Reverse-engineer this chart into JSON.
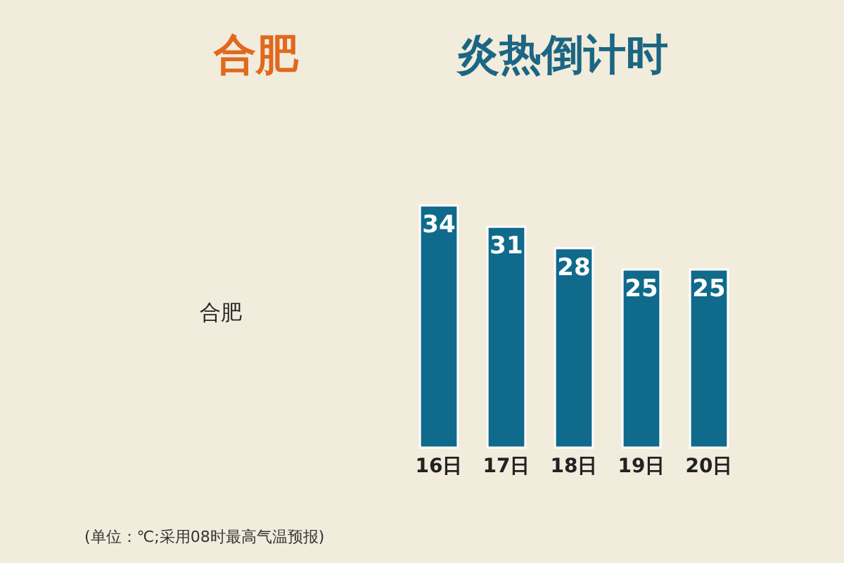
{
  "chart_data": {
    "type": "bar",
    "title": "合肥",
    "subtitle": "炎热倒计时",
    "categories": [
      "16日",
      "17日",
      "18日",
      "19日",
      "20日"
    ],
    "values": [
      34,
      31,
      28,
      25,
      25
    ],
    "color": "#0f6a8b",
    "data_labels": true,
    "grid": false,
    "tick_labels": "x",
    "annotations": [
      "合肥",
      "(单位：℃;采用08时最高气温预报)"
    ]
  }
}
